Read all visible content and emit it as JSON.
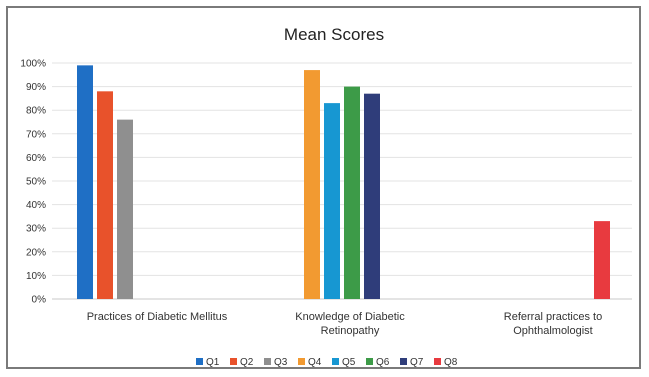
{
  "chart_data": {
    "type": "bar",
    "title": "Mean Scores",
    "xlabel": "",
    "ylabel": "",
    "ylim": [
      0,
      100
    ],
    "yticks": [
      "0%",
      "10%",
      "20%",
      "30%",
      "40%",
      "50%",
      "60%",
      "70%",
      "80%",
      "90%",
      "100%"
    ],
    "grid": true,
    "legend": "bottom",
    "categories": [
      [
        "Practices of Diabetic Mellitus"
      ],
      [
        "Knowledge of Diabetic",
        "Retinopathy"
      ],
      [
        "Referral practices to",
        "Ophthalmologist"
      ]
    ],
    "series": [
      {
        "name": "Q1",
        "color": "#1f6fc5",
        "values": [
          99,
          null,
          null
        ]
      },
      {
        "name": "Q2",
        "color": "#e8522b",
        "values": [
          88,
          null,
          null
        ]
      },
      {
        "name": "Q3",
        "color": "#8f8f8f",
        "values": [
          76,
          null,
          null
        ]
      },
      {
        "name": "Q4",
        "color": "#f29a31",
        "values": [
          null,
          97,
          null
        ]
      },
      {
        "name": "Q5",
        "color": "#1797d2",
        "values": [
          null,
          83,
          null
        ]
      },
      {
        "name": "Q6",
        "color": "#3d9b48",
        "values": [
          null,
          90,
          null
        ]
      },
      {
        "name": "Q7",
        "color": "#2f3d7a",
        "values": [
          null,
          87,
          null
        ]
      },
      {
        "name": "Q8",
        "color": "#e83a3f",
        "values": [
          null,
          null,
          33
        ]
      }
    ]
  }
}
